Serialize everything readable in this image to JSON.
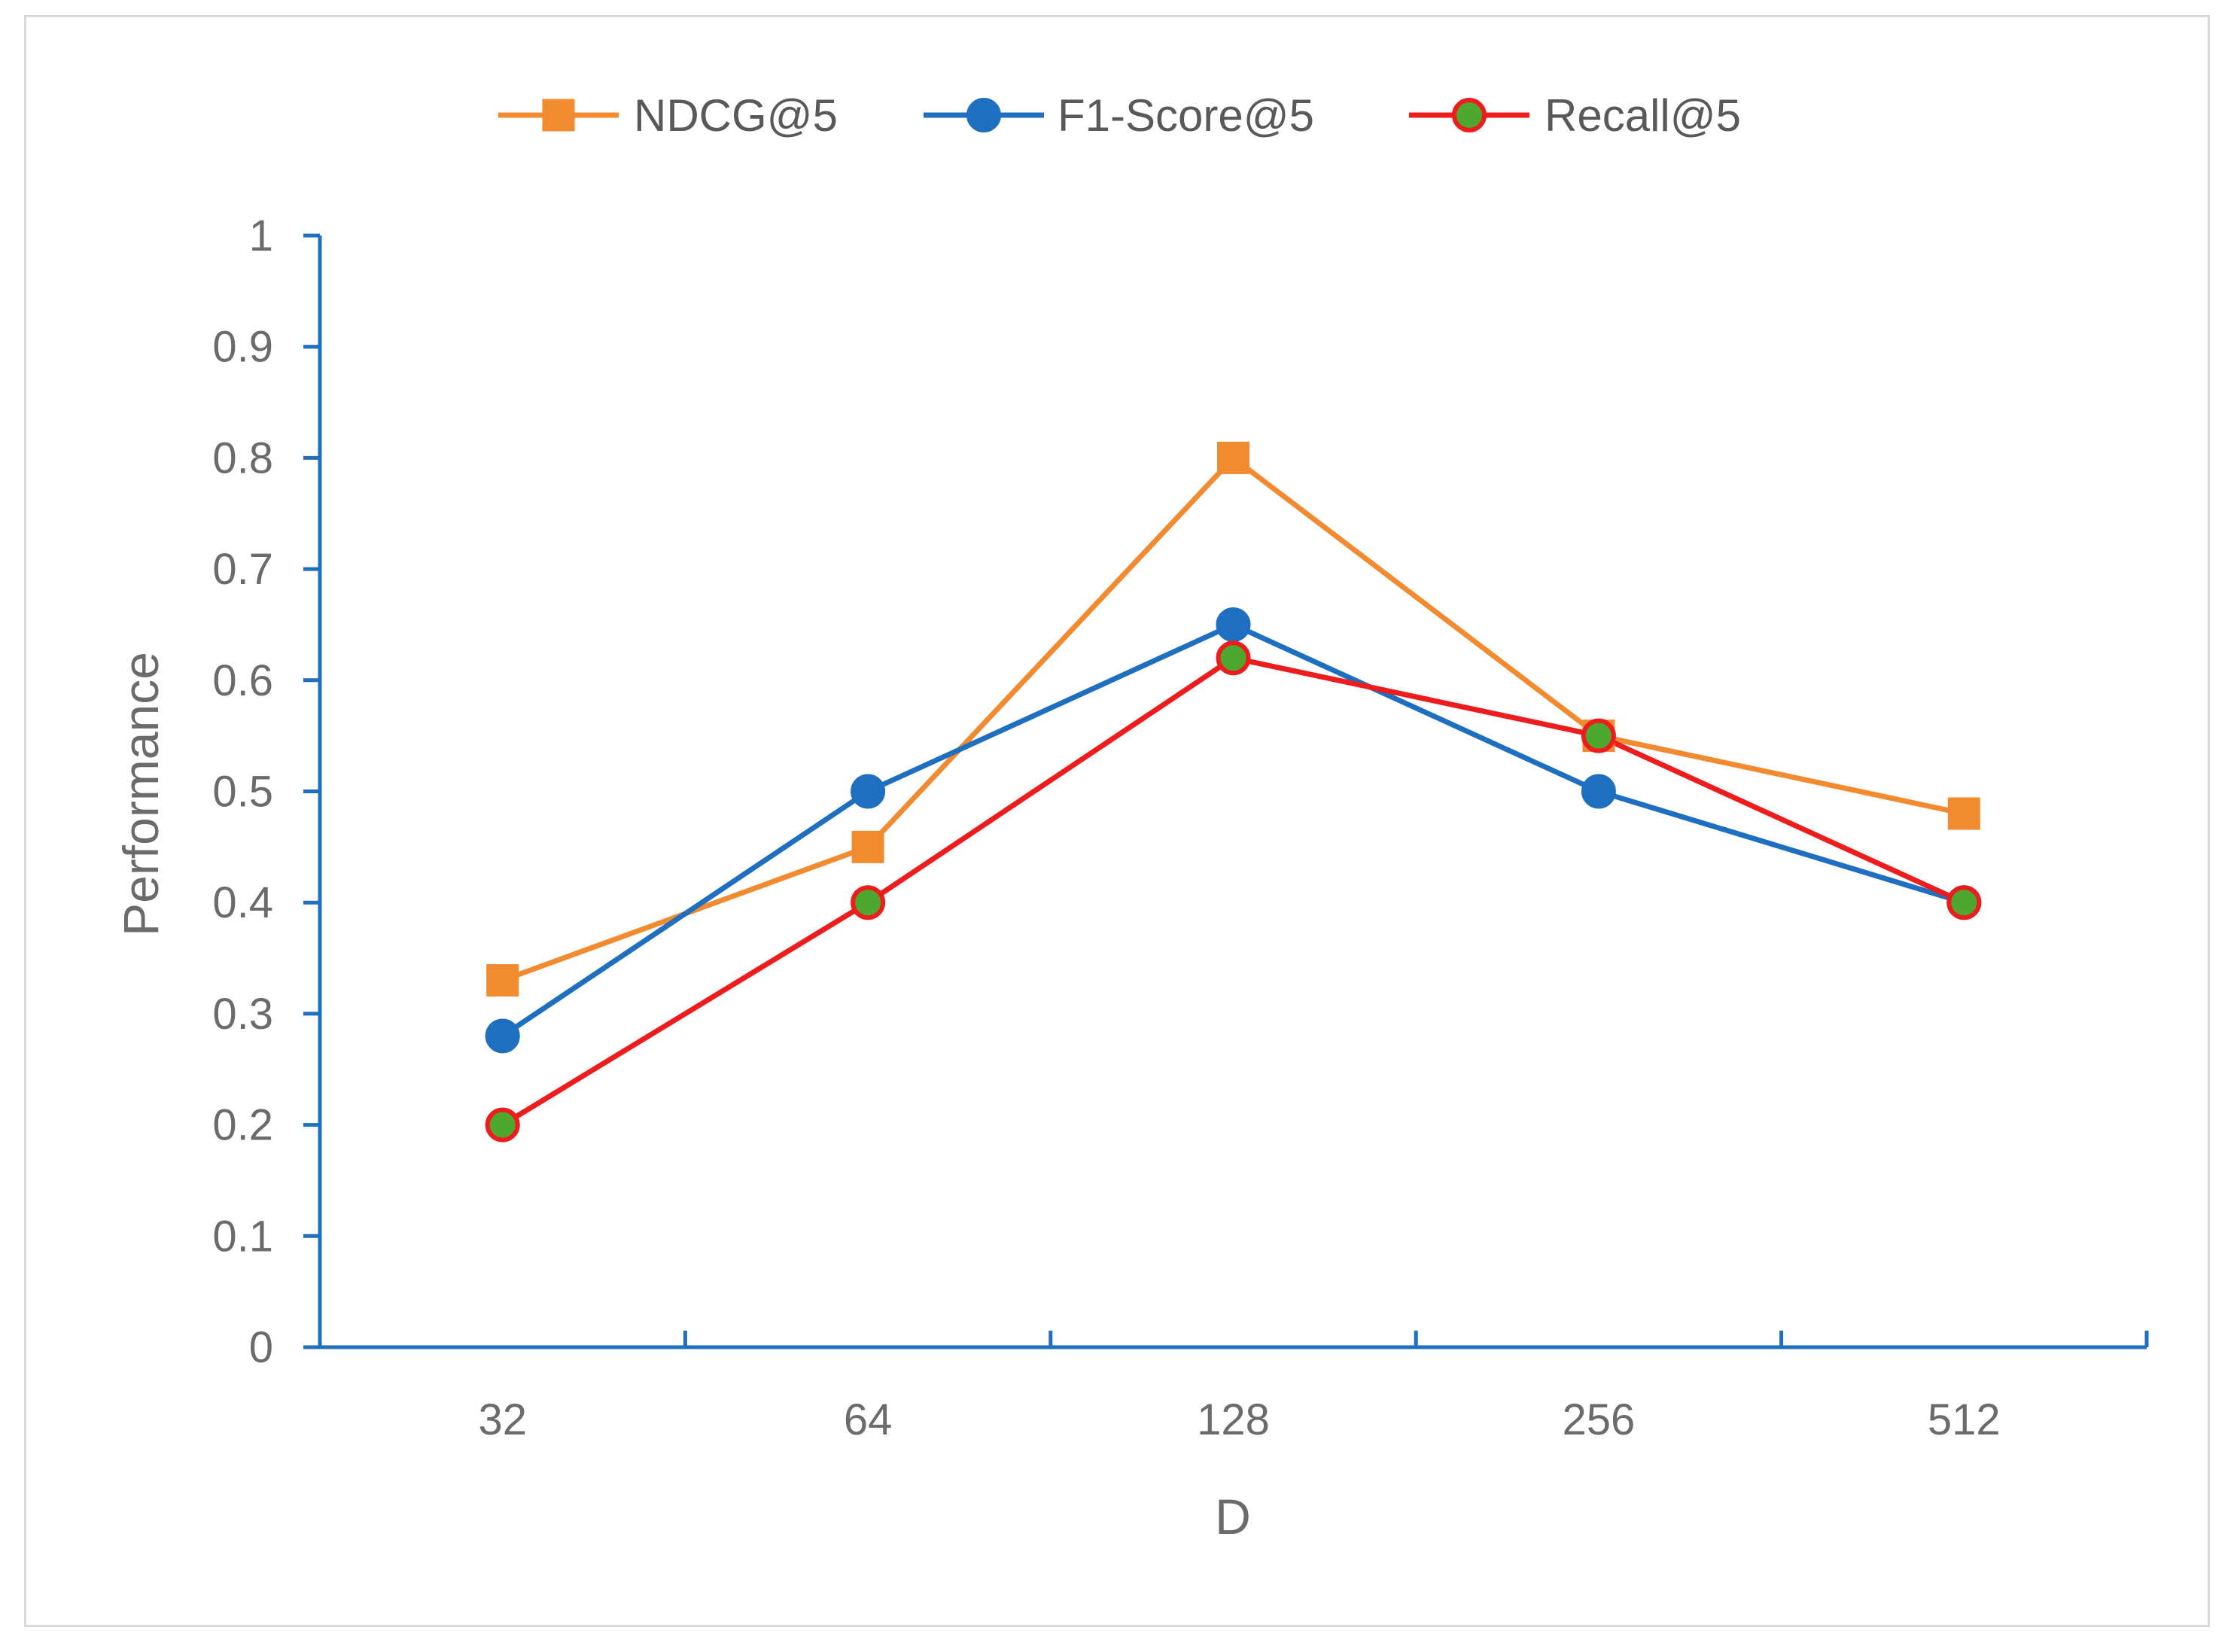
{
  "chart_data": {
    "type": "line",
    "title": "",
    "xlabel": "D",
    "ylabel": "Performance",
    "categories": [
      "32",
      "64",
      "128",
      "256",
      "512"
    ],
    "ylim": [
      0,
      1
    ],
    "yticks": [
      "0",
      "0.1",
      "0.2",
      "0.3",
      "0.4",
      "0.5",
      "0.6",
      "0.7",
      "0.8",
      "0.9",
      "1"
    ],
    "ytick_values": [
      0,
      0.1,
      0.2,
      0.3,
      0.4,
      0.5,
      0.6,
      0.7,
      0.8,
      0.9,
      1
    ],
    "grid": false,
    "legend_position": "top",
    "series": [
      {
        "name": "NDCG@5",
        "values": [
          0.33,
          0.45,
          0.8,
          0.55,
          0.48
        ],
        "color": "#f28a30",
        "marker": "square",
        "marker_fill": "#f28a30",
        "marker_stroke": "#f28a30"
      },
      {
        "name": "F1-Score@5",
        "values": [
          0.28,
          0.5,
          0.65,
          0.5,
          0.4
        ],
        "color": "#1f6fc1",
        "marker": "circle",
        "marker_fill": "#1f6fc1",
        "marker_stroke": "#1f6fc1"
      },
      {
        "name": "Recall@5",
        "values": [
          0.2,
          0.4,
          0.62,
          0.55,
          0.4
        ],
        "color": "#ee1c1c",
        "marker": "circle",
        "marker_fill": "#4ea72e",
        "marker_stroke": "#ee1c1c"
      }
    ],
    "axis_color": "#1f6fc1"
  }
}
